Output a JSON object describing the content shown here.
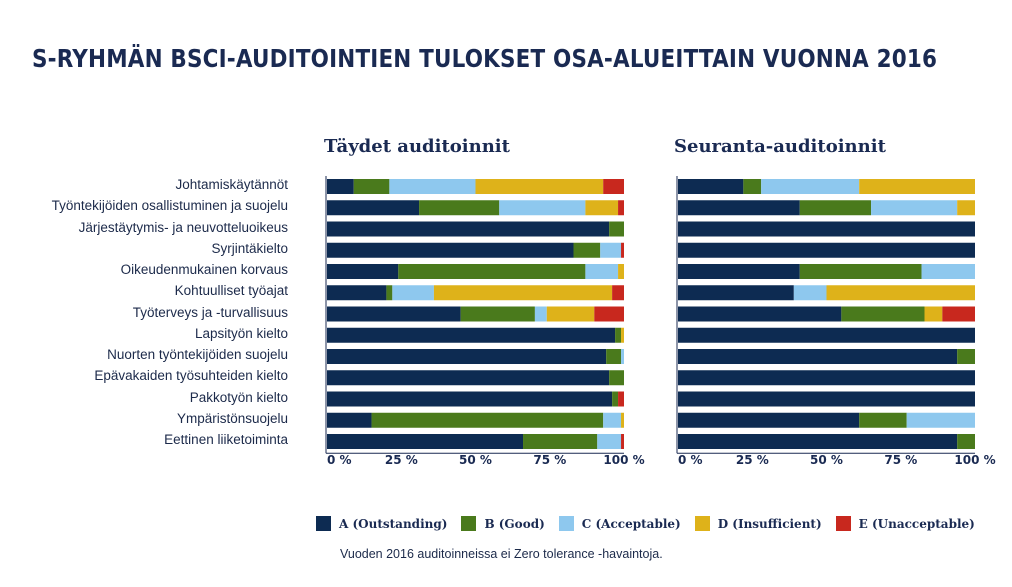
{
  "title": "S-RYHMÄN BSCI-AUDITOINTIEN TULOKSET OSA-ALUEITTAIN VUONNA 2016",
  "footnote": "Vuoden 2016 auditoinneissa ei Zero tolerance -havaintoja.",
  "colors": {
    "A": "#0d2b52",
    "B": "#4a7a1c",
    "C": "#8ec8ee",
    "D": "#deb21a",
    "E": "#c8281e"
  },
  "legend": [
    {
      "key": "A",
      "label": "A (Outstanding)"
    },
    {
      "key": "B",
      "label": "B (Good)"
    },
    {
      "key": "C",
      "label": "C (Acceptable)"
    },
    {
      "key": "D",
      "label": "D (Insufficient)"
    },
    {
      "key": "E",
      "label": "E (Unacceptable)"
    }
  ],
  "chart_data": [
    {
      "type": "bar",
      "stacked": "horizontal-100%",
      "title": "Täydet auditoinnit",
      "xticks": [
        "0 %",
        "25 %",
        "50 %",
        "75 %",
        "100 %"
      ],
      "xlim": [
        0,
        100
      ],
      "categories": [
        "Johtamiskäytännöt",
        "Työntekijöiden osallistuminen ja suojelu",
        "Järjestäytymis- ja neuvotteluoikeus",
        "Syrjintäkielto",
        "Oikeudenmukainen korvaus",
        "Kohtuulliset työajat",
        "Työterveys ja -turvallisuus",
        "Lapsityön kielto",
        "Nuorten työntekijöiden suojelu",
        "Epävakaiden työsuhteiden kielto",
        "Pakkotyön kielto",
        "Ympäristönsuojelu",
        "Eettinen liiketoiminta"
      ],
      "series": [
        {
          "key": "A",
          "name": "A (Outstanding)",
          "values": [
            9,
            31,
            95,
            83,
            24,
            20,
            45,
            97,
            94,
            95,
            96,
            15,
            66
          ]
        },
        {
          "key": "B",
          "name": "B (Good)",
          "values": [
            12,
            27,
            5,
            9,
            63,
            2,
            25,
            2,
            5,
            5,
            2,
            78,
            25
          ]
        },
        {
          "key": "C",
          "name": "C (Acceptable)",
          "values": [
            29,
            29,
            0,
            7,
            11,
            14,
            4,
            0,
            1,
            0,
            0,
            6,
            8
          ]
        },
        {
          "key": "D",
          "name": "D (Insufficient)",
          "values": [
            43,
            11,
            0,
            0,
            2,
            60,
            16,
            1,
            0,
            0,
            0,
            1,
            0
          ]
        },
        {
          "key": "E",
          "name": "E (Unacceptable)",
          "values": [
            7,
            2,
            0,
            1,
            0,
            4,
            10,
            0,
            0,
            0,
            2,
            0,
            1
          ]
        }
      ]
    },
    {
      "type": "bar",
      "stacked": "horizontal-100%",
      "title": "Seuranta-auditoinnit",
      "xticks": [
        "0 %",
        "25 %",
        "50 %",
        "75 %",
        "100 %"
      ],
      "xlim": [
        0,
        100
      ],
      "categories": [
        "Johtamiskäytännöt",
        "Työntekijöiden osallistuminen ja suojelu",
        "Järjestäytymis- ja neuvotteluoikeus",
        "Syrjintäkielto",
        "Oikeudenmukainen korvaus",
        "Kohtuulliset työajat",
        "Työterveys ja -turvallisuus",
        "Lapsityön kielto",
        "Nuorten työntekijöiden suojelu",
        "Epävakaiden työsuhteiden kielto",
        "Pakkotyön kielto",
        "Ympäristönsuojelu",
        "Eettinen liiketoiminta"
      ],
      "series": [
        {
          "key": "A",
          "name": "A (Outstanding)",
          "values": [
            22,
            41,
            100,
            100,
            41,
            39,
            55,
            100,
            94,
            100,
            100,
            61,
            94
          ]
        },
        {
          "key": "B",
          "name": "B (Good)",
          "values": [
            6,
            24,
            0,
            0,
            41,
            0,
            28,
            0,
            6,
            0,
            0,
            16,
            6
          ]
        },
        {
          "key": "C",
          "name": "C (Acceptable)",
          "values": [
            33,
            29,
            0,
            0,
            18,
            11,
            0,
            0,
            0,
            0,
            0,
            23,
            0
          ]
        },
        {
          "key": "D",
          "name": "D (Insufficient)",
          "values": [
            39,
            6,
            0,
            0,
            0,
            50,
            6,
            0,
            0,
            0,
            0,
            0,
            0
          ]
        },
        {
          "key": "E",
          "name": "E (Unacceptable)",
          "values": [
            0,
            0,
            0,
            0,
            0,
            0,
            11,
            0,
            0,
            0,
            0,
            0,
            0
          ]
        }
      ]
    }
  ]
}
